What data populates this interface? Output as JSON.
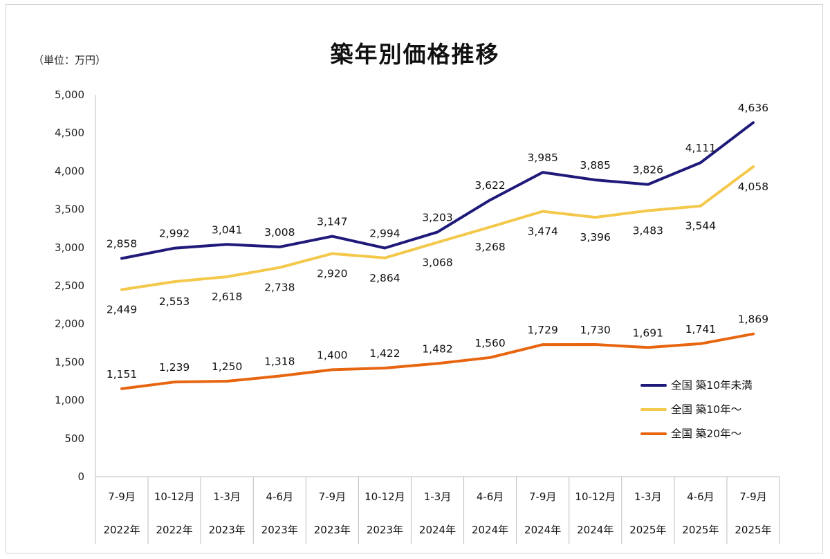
{
  "unit_label": "（単位：万円）",
  "chart_data": {
    "type": "line",
    "title": "築年別価格推移",
    "ylabel": "",
    "xlabel": "",
    "ylim": [
      0,
      5000
    ],
    "yticks": [
      0,
      500,
      1000,
      1500,
      2000,
      2500,
      3000,
      3500,
      4000,
      4500,
      5000
    ],
    "ytick_labels": [
      "0",
      "500",
      "1,000",
      "1,500",
      "2,000",
      "2,500",
      "3,000",
      "3,500",
      "4,000",
      "4,500",
      "5,000"
    ],
    "grid": false,
    "legend_position": "right",
    "categories": [
      {
        "period": "7-9月",
        "year": "2022年"
      },
      {
        "period": "10-12月",
        "year": "2022年"
      },
      {
        "period": "1-3月",
        "year": "2023年"
      },
      {
        "period": "4-6月",
        "year": "2023年"
      },
      {
        "period": "7-9月",
        "year": "2023年"
      },
      {
        "period": "10-12月",
        "year": "2023年"
      },
      {
        "period": "1-3月",
        "year": "2024年"
      },
      {
        "period": "4-6月",
        "year": "2024年"
      },
      {
        "period": "7-9月",
        "year": "2024年"
      },
      {
        "period": "10-12月",
        "year": "2024年"
      },
      {
        "period": "1-3月",
        "year": "2025年"
      },
      {
        "period": "4-6月",
        "year": "2025年"
      },
      {
        "period": "7-9月",
        "year": "2025年"
      }
    ],
    "series": [
      {
        "name": "全国 築10年未満",
        "color": "#1f1a7a",
        "values": [
          2858,
          2992,
          3041,
          3008,
          3147,
          2994,
          3203,
          3622,
          3985,
          3885,
          3826,
          4111,
          4636
        ],
        "labels": [
          "2,858",
          "2,992",
          "3,041",
          "3,008",
          "3,147",
          "2,994",
          "3,203",
          "3,622",
          "3,985",
          "3,885",
          "3,826",
          "4,111",
          "4,636"
        ],
        "label_side": "above"
      },
      {
        "name": "全国 築10年～",
        "color": "#f3c84b",
        "values": [
          2449,
          2553,
          2618,
          2738,
          2920,
          2864,
          3068,
          3268,
          3474,
          3396,
          3483,
          3544,
          4058
        ],
        "labels": [
          "2,449",
          "2,553",
          "2,618",
          "2,738",
          "2,920",
          "2,864",
          "3,068",
          "3,268",
          "3,474",
          "3,396",
          "3,483",
          "3,544",
          "4,058"
        ],
        "label_side": "below"
      },
      {
        "name": "全国 築20年～",
        "color": "#e8650f",
        "values": [
          1151,
          1239,
          1250,
          1318,
          1400,
          1422,
          1482,
          1560,
          1729,
          1730,
          1691,
          1741,
          1869
        ],
        "labels": [
          "1,151",
          "1,239",
          "1,250",
          "1,318",
          "1,400",
          "1,422",
          "1,482",
          "1,560",
          "1,729",
          "1,730",
          "1,691",
          "1,741",
          "1,869"
        ],
        "label_side": "above"
      }
    ]
  }
}
